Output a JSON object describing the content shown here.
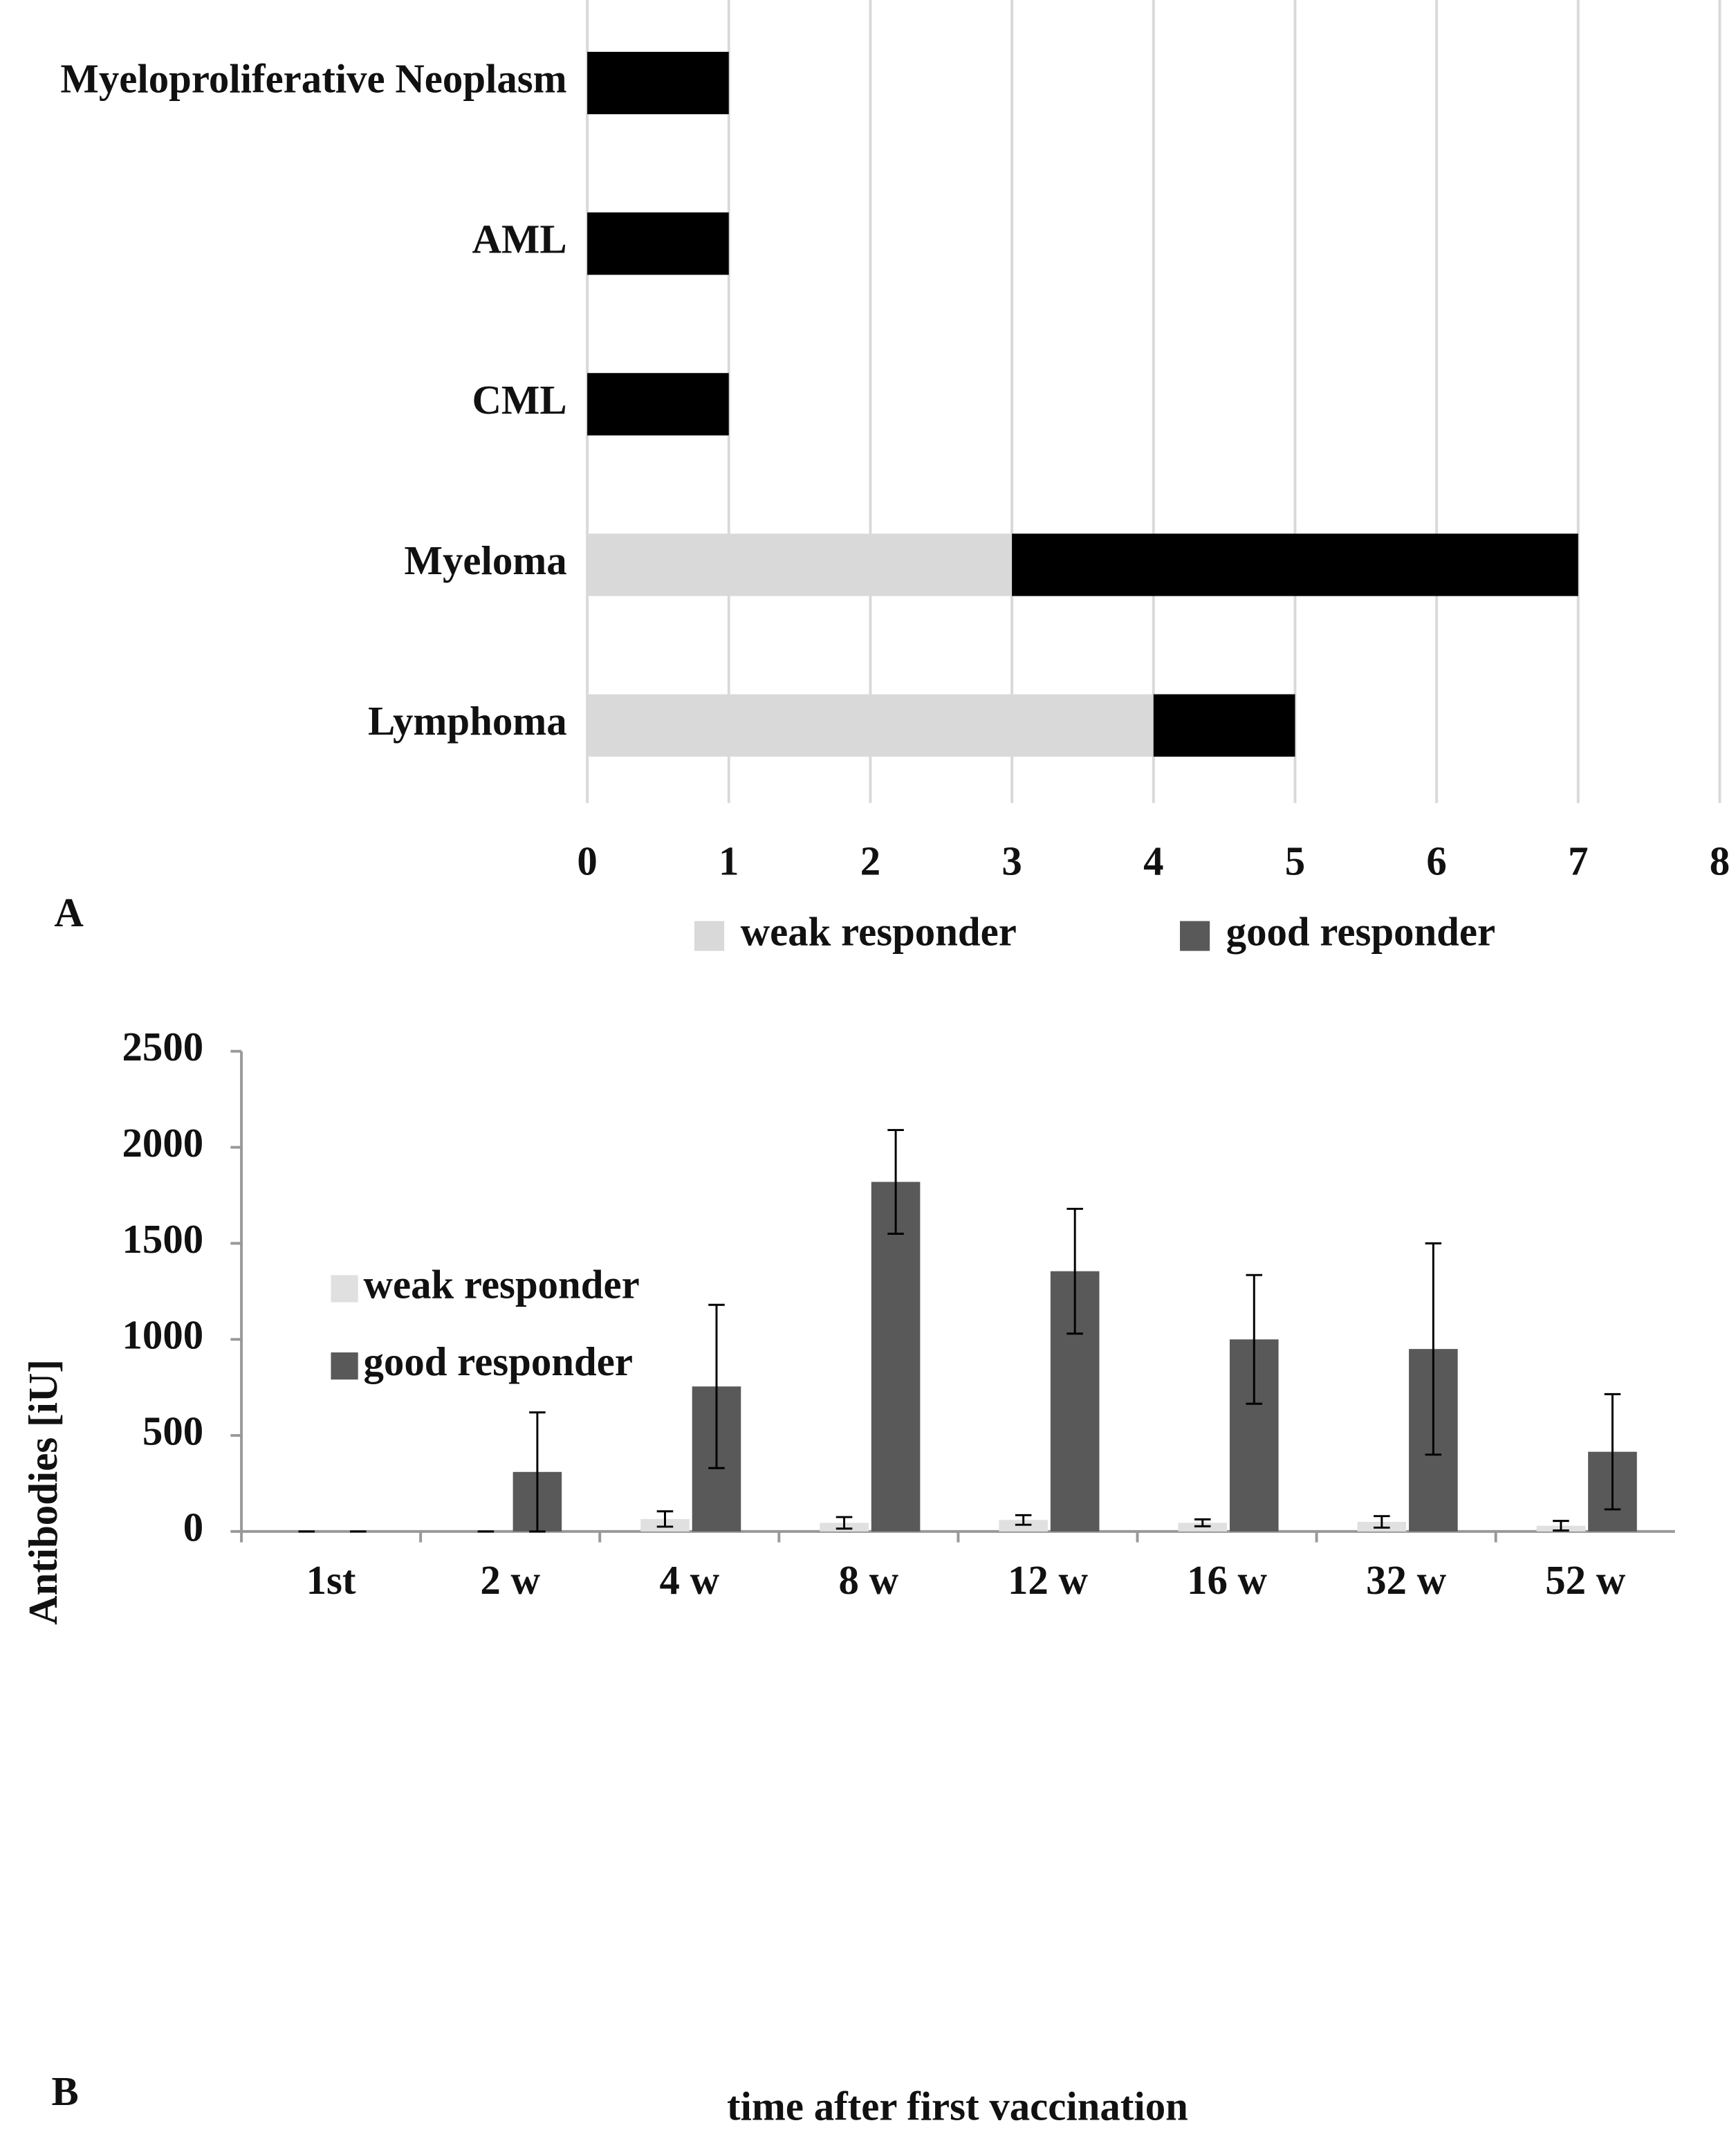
{
  "chart_data": [
    {
      "type": "stacked-barh",
      "panel_label": "A",
      "categories": [
        "Myeloproliferative Neoplasm",
        "AML",
        "CML",
        "Myeloma",
        "Lymphoma"
      ],
      "series": [
        {
          "name": "weak responder",
          "color": "#d9d9d9",
          "values": [
            0,
            0,
            0,
            3,
            4
          ]
        },
        {
          "name": "good responder",
          "color": "#000000",
          "values": [
            1,
            1,
            1,
            4,
            1
          ]
        }
      ],
      "xlim": [
        0,
        8
      ],
      "xticks": [
        0,
        1,
        2,
        3,
        4,
        5,
        6,
        7,
        8
      ],
      "grid": true,
      "legend": "bottom"
    },
    {
      "type": "bar",
      "panel_label": "B",
      "x_label": "time after first vaccination",
      "y_label": "Antibodies [iU]",
      "categories": [
        "1st",
        "2 w",
        "4 w",
        "8 w",
        "12 w",
        "16 w",
        "32 w",
        "52 w"
      ],
      "series": [
        {
          "name": "weak responder",
          "color": "#e0e0e0",
          "values": [
            0,
            0,
            65,
            45,
            60,
            45,
            50,
            30
          ],
          "errors": [
            0,
            0,
            40,
            30,
            25,
            18,
            30,
            25
          ]
        },
        {
          "name": "good responder",
          "color": "#595959",
          "values": [
            0,
            310,
            755,
            1820,
            1355,
            1000,
            950,
            415
          ],
          "errors": [
            0,
            310,
            425,
            270,
            325,
            335,
            550,
            300
          ]
        }
      ],
      "ylim": [
        0,
        2500
      ],
      "yticks": [
        0,
        500,
        1000,
        1500,
        2000,
        2500
      ],
      "grid": false,
      "legend": "upper left"
    }
  ]
}
